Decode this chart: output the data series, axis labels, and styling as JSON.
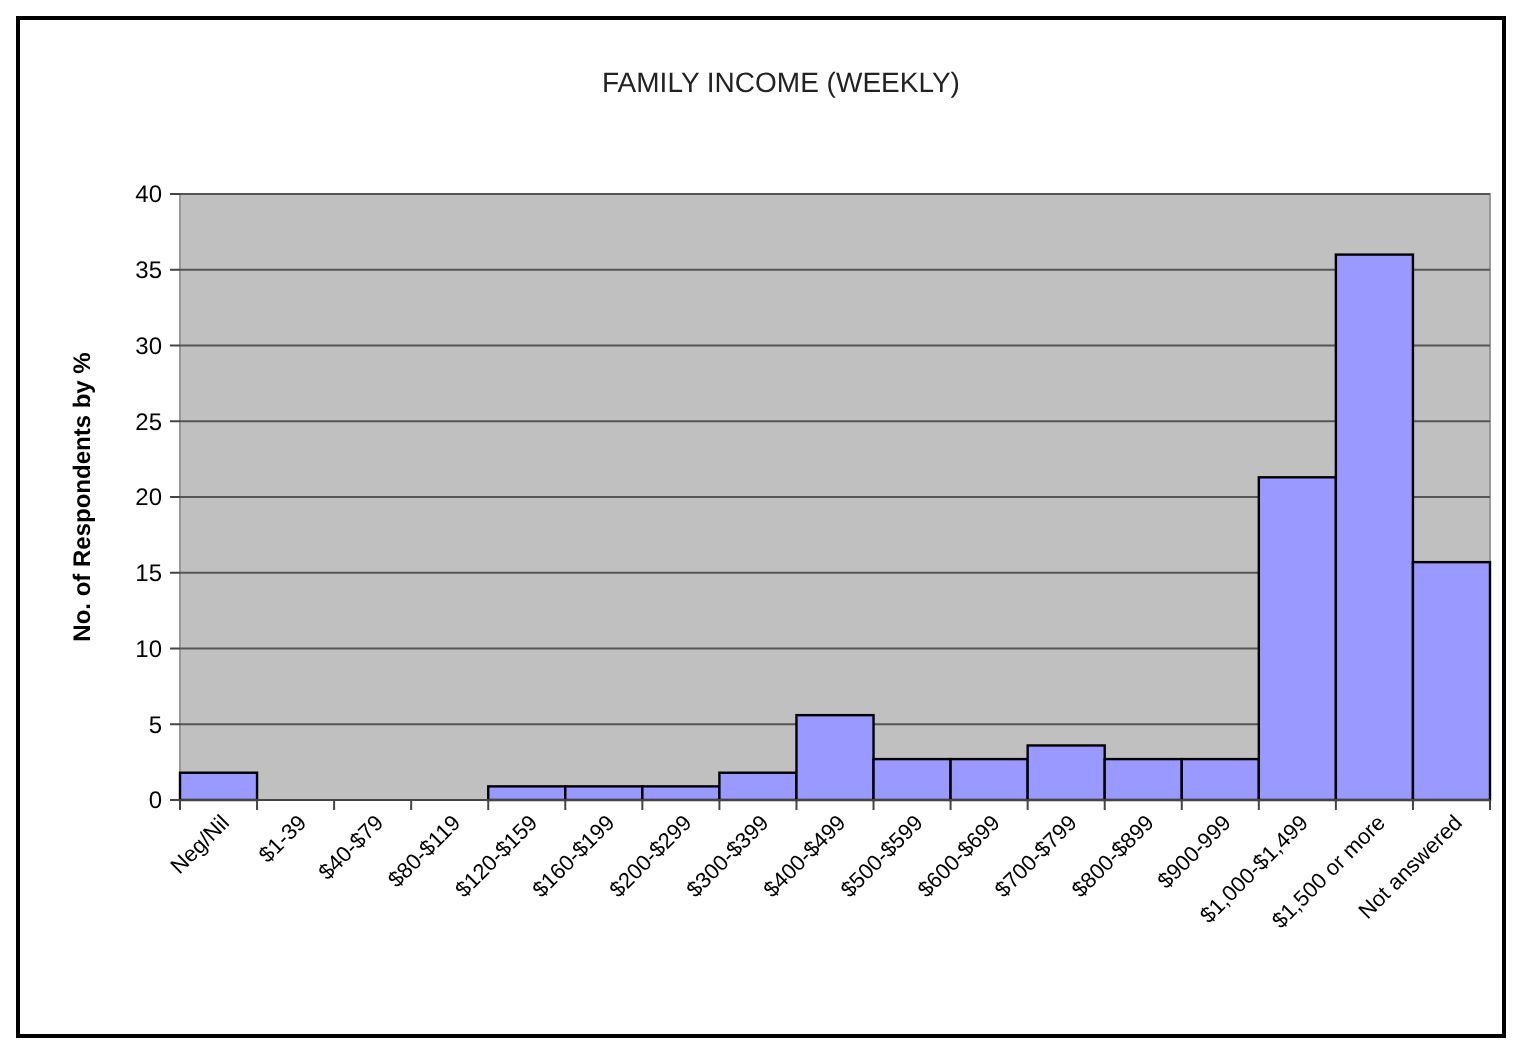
{
  "chart_data": {
    "type": "bar",
    "title": "FAMILY INCOME (WEEKLY)",
    "ylabel": "No. of Respondents by %",
    "categories": [
      "Neg/Nil",
      "$1-39",
      "$40-$79",
      "$80-$119",
      "$120-$159",
      "$160-$199",
      "$200-$299",
      "$300-$399",
      "$400-$499",
      "$500-$599",
      "$600-$699",
      "$700-$799",
      "$800-$899",
      "$900-999",
      "$1,000-$1,499",
      "$1,500 or more",
      "Not answered"
    ],
    "values": [
      1.8,
      0,
      0,
      0,
      0.9,
      0.9,
      0.9,
      1.8,
      5.6,
      2.7,
      2.7,
      3.6,
      2.7,
      2.7,
      21.3,
      36,
      15.7
    ],
    "color": "#9999ff",
    "ylim": [
      0,
      40
    ],
    "yticks": [
      0,
      5,
      10,
      15,
      20,
      25,
      30,
      35,
      40
    ],
    "grid": "y"
  }
}
